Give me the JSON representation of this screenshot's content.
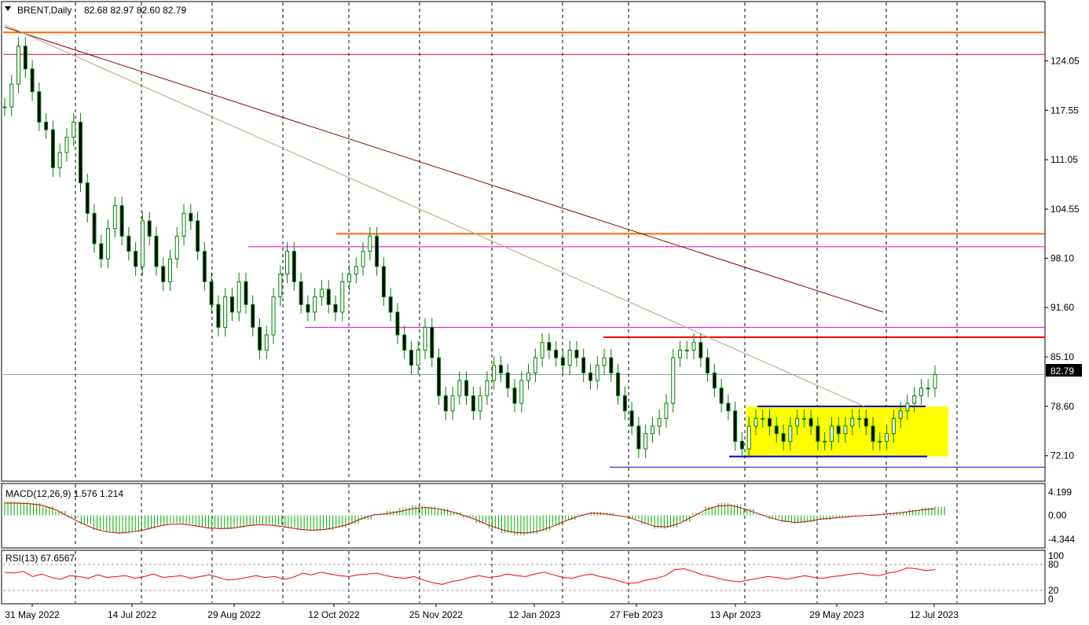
{
  "chart_data": [
    {
      "type": "candlestick",
      "header": {
        "symbol_label": "BRENT,Daily",
        "ohlc_label": "82.68 82.97 82.60 82.79"
      },
      "x_ticks": [
        "31 May 2022",
        "14 Jul 2022",
        "29 Aug 2022",
        "12 Oct 2022",
        "25 Nov 2022",
        "12 Jan 2023",
        "27 Feb 2023",
        "13 Apr 2023",
        "29 May 2023",
        "12 Jul 2023"
      ],
      "y_ticks": [
        "124.05",
        "117.55",
        "111.05",
        "104.55",
        "98.10",
        "91.60",
        "85.10",
        "78.60",
        "72.10"
      ],
      "ylim": [
        70.0,
        130.0
      ],
      "last_price_label": "82.79",
      "last_price": 82.79,
      "close_series": [
        118,
        121,
        126,
        123,
        120,
        116,
        115,
        110,
        112,
        114,
        116,
        108,
        104,
        100,
        98,
        102,
        105,
        101,
        99,
        97,
        103,
        101,
        97,
        95,
        98,
        101,
        104,
        103,
        99,
        95,
        92,
        89,
        93,
        91,
        95,
        92,
        89,
        86,
        88,
        93,
        96,
        99,
        95,
        92,
        91,
        93,
        94,
        92,
        91,
        95,
        96,
        97,
        99,
        101,
        97,
        93,
        91,
        88,
        86,
        84,
        86,
        89,
        85,
        80,
        78,
        80,
        82,
        80,
        78,
        80,
        82,
        84,
        83,
        81,
        79,
        82,
        83,
        85,
        87,
        86,
        85,
        84,
        86,
        85,
        83,
        82,
        84,
        85,
        83,
        80,
        78,
        76,
        73,
        75,
        76,
        77,
        79,
        85,
        86,
        86,
        87,
        85,
        83,
        81,
        79,
        78,
        74,
        73,
        76,
        77,
        77,
        76,
        75,
        74,
        76,
        77,
        77,
        76,
        74,
        74,
        76,
        75,
        76,
        77,
        77,
        76,
        74,
        74,
        75,
        77,
        78,
        79,
        80,
        81,
        81,
        82.79
      ],
      "levels": [
        {
          "value": 127.8,
          "color": "#ff6600"
        },
        {
          "value": 124.9,
          "color": "#c8143c"
        },
        {
          "value": 101.3,
          "color": "#ff6600"
        },
        {
          "value": 99.6,
          "color": "#dd00dd"
        },
        {
          "value": 89.0,
          "color": "#dd00dd"
        },
        {
          "value": 87.7,
          "color": "#ff0000"
        },
        {
          "value": 78.6,
          "color": "#0000cc"
        },
        {
          "value": 72.0,
          "color": "#0000cc"
        },
        {
          "value": 70.6,
          "color": "#0000cc"
        }
      ],
      "trendlines": [
        {
          "from": {
            "date": "31 May 2022",
            "value": 128.5
          },
          "to": {
            "date": "12 Jul 2023",
            "value": 91.0
          },
          "color": "#8b0000"
        },
        {
          "from": {
            "date": "31 May 2022",
            "value": 128.8
          },
          "to": {
            "date": "29 May 2023",
            "value": 78.6
          },
          "color": "#b5a27a"
        }
      ],
      "range_box": {
        "from": "13 Apr 2023",
        "to": "12 Jul 2023",
        "high": 78.6,
        "low": 72.0,
        "color": "#ffff00"
      },
      "colors": {
        "candle": "#008000",
        "grid": "#000000"
      }
    },
    {
      "type": "bar",
      "title": "MACD(12,26,9) 1.576 1.214",
      "y_ticks": [
        "4.199",
        "0.00",
        "-4.344"
      ],
      "ylim": [
        -4.344,
        4.199
      ],
      "histogram": [
        2.5,
        2.4,
        2.2,
        1.6,
        0.8,
        -0.4,
        -1.6,
        -2.6,
        -3.1,
        -3.3,
        -3.0,
        -2.4,
        -1.8,
        -1.4,
        -1.6,
        -2.0,
        -2.4,
        -2.5,
        -2.2,
        -1.8,
        -1.6,
        -1.8,
        -2.2,
        -2.6,
        -2.8,
        -2.6,
        -2.2,
        -1.6,
        -0.8,
        0.2,
        0.8,
        1.4,
        1.8,
        1.6,
        1.2,
        0.6,
        -0.4,
        -1.4,
        -2.4,
        -3.2,
        -3.6,
        -3.4,
        -2.8,
        -1.8,
        -0.8,
        0.2,
        0.6,
        0.4,
        0.0,
        -0.6,
        -1.6,
        -2.4,
        -2.2,
        -1.2,
        0.4,
        1.6,
        2.2,
        2.0,
        1.2,
        0.2,
        -0.6,
        -1.2,
        -1.4,
        -1.2,
        -0.8,
        -0.4,
        -0.2,
        0.0,
        0.2,
        0.4,
        0.6,
        1.0,
        1.4,
        1.576
      ],
      "signal": [
        2.2,
        2.2,
        2.1,
        1.8,
        1.0,
        -0.2,
        -1.4,
        -2.4,
        -3.0,
        -3.2,
        -3.0,
        -2.6,
        -2.0,
        -1.6,
        -1.6,
        -1.9,
        -2.3,
        -2.4,
        -2.3,
        -1.9,
        -1.7,
        -1.8,
        -2.1,
        -2.5,
        -2.7,
        -2.6,
        -2.2,
        -1.6,
        -0.6,
        0.1,
        0.3,
        0.7,
        1.2,
        1.4,
        1.2,
        0.7,
        0.0,
        -0.8,
        -1.8,
        -2.6,
        -3.1,
        -3.2,
        -2.8,
        -2.0,
        -1.0,
        -0.2,
        0.4,
        0.3,
        0.0,
        -0.4,
        -1.2,
        -2.0,
        -2.1,
        -1.4,
        -0.2,
        1.0,
        1.7,
        1.8,
        1.2,
        0.4,
        -0.4,
        -1.0,
        -1.3,
        -1.1,
        -0.7,
        -0.5,
        -0.3,
        -0.1,
        0.0,
        0.2,
        0.4,
        0.7,
        1.0,
        1.214
      ],
      "colors": {
        "histogram": "#00b000",
        "signal": "#cc0000"
      }
    },
    {
      "type": "line",
      "title": "RSI(13) 67.6567",
      "y_ticks": [
        "100",
        "80",
        "20",
        "0"
      ],
      "ylim": [
        0,
        100
      ],
      "levels": [
        80,
        20
      ],
      "values": [
        62,
        60,
        64,
        52,
        58,
        50,
        46,
        54,
        52,
        48,
        56,
        50,
        52,
        54,
        48,
        52,
        58,
        50,
        52,
        54,
        48,
        52,
        56,
        50,
        44,
        46,
        50,
        54,
        50,
        52,
        46,
        50,
        60,
        56,
        62,
        58,
        54,
        52,
        56,
        58,
        60,
        54,
        50,
        48,
        52,
        44,
        38,
        34,
        40,
        44,
        50,
        54,
        50,
        52,
        58,
        54,
        52,
        58,
        62,
        56,
        50,
        48,
        54,
        58,
        52,
        48,
        42,
        36,
        38,
        44,
        48,
        54,
        68,
        70,
        64,
        56,
        52,
        46,
        42,
        40,
        44,
        48,
        52,
        50,
        46,
        50,
        54,
        50,
        48,
        52,
        54,
        58,
        60,
        56,
        54,
        60,
        64,
        72,
        70,
        66,
        68
      ],
      "colors": {
        "line": "#ff0000"
      }
    }
  ]
}
